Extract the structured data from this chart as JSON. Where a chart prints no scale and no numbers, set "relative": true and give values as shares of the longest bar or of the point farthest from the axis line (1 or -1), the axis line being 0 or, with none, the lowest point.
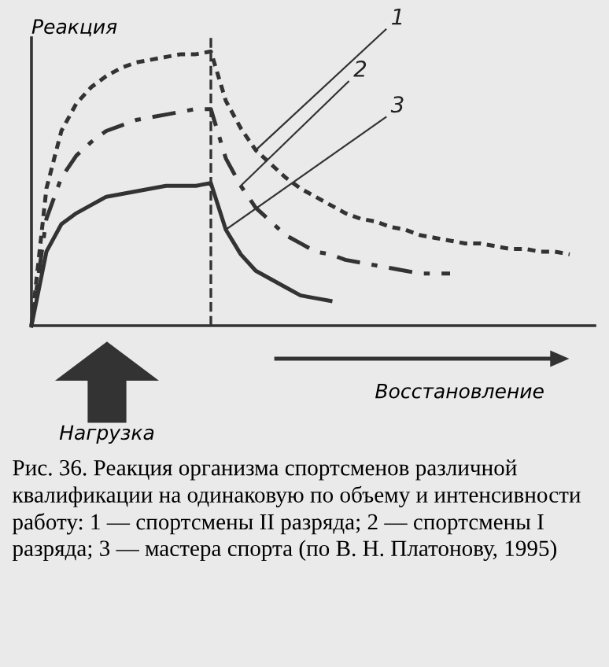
{
  "chart_data": {
    "type": "line",
    "relative": true,
    "grid": false,
    "legend": false,
    "marker": "none",
    "ylabel": "Реакция",
    "xlabel": "Восстановление",
    "categories": [
      null,
      null,
      null,
      null,
      null,
      null,
      null,
      null,
      null,
      null,
      null,
      null,
      null,
      null,
      null,
      null,
      null,
      null,
      null,
      null,
      null,
      null,
      null,
      null,
      null,
      null,
      null,
      null,
      null,
      null,
      null,
      null,
      null,
      null,
      null,
      null,
      null
    ],
    "series": [
      {
        "name": "1",
        "color": "#333333",
        "line_style": "dotted",
        "values": [
          0,
          0.5,
          0.71,
          0.81,
          0.87,
          0.91,
          0.94,
          0.96,
          0.97,
          0.98,
          0.99,
          0.99,
          1,
          0.82,
          0.72,
          0.64,
          0.59,
          0.54,
          0.5,
          0.47,
          0.44,
          0.41,
          0.39,
          0.38,
          0.36,
          0.35,
          0.33,
          0.32,
          0.31,
          0.3,
          0.3,
          0.29,
          0.28,
          0.28,
          0.27,
          0.27,
          0.26
        ]
      },
      {
        "name": "2",
        "color": "#333333",
        "line_style": "dashdot",
        "values": [
          0,
          0.39,
          0.54,
          0.62,
          0.67,
          0.71,
          0.73,
          0.75,
          0.76,
          0.77,
          0.78,
          0.79,
          0.79,
          0.61,
          0.51,
          0.43,
          0.38,
          0.33,
          0.3,
          0.27,
          0.26,
          0.24,
          0.23,
          0.22,
          0.21,
          0.2,
          0.19,
          0.19,
          0.19,
          null,
          null,
          null,
          null,
          null,
          null,
          null,
          null
        ]
      },
      {
        "name": "3",
        "color": "#333333",
        "line_style": "solid",
        "values": [
          0,
          0.27,
          0.37,
          0.41,
          0.44,
          0.47,
          0.48,
          0.49,
          0.5,
          0.51,
          0.51,
          0.51,
          0.52,
          0.35,
          0.26,
          0.2,
          0.17,
          0.14,
          0.11,
          0.1,
          0.09,
          null,
          null,
          null,
          null,
          null,
          null,
          null,
          null,
          null,
          null,
          null,
          null,
          null,
          null,
          null,
          null
        ]
      }
    ],
    "annotations": [
      "Нагрузка",
      "Рис. 36. Реакция организма спортсменов различной квалификации на одинаковую по объему и интенсивности работу: 1 — спортсмены II разряда; 2 — спортсмены I разряда; 3 — мастера спорта (по В. Н. Платонову, 1995)"
    ]
  }
}
